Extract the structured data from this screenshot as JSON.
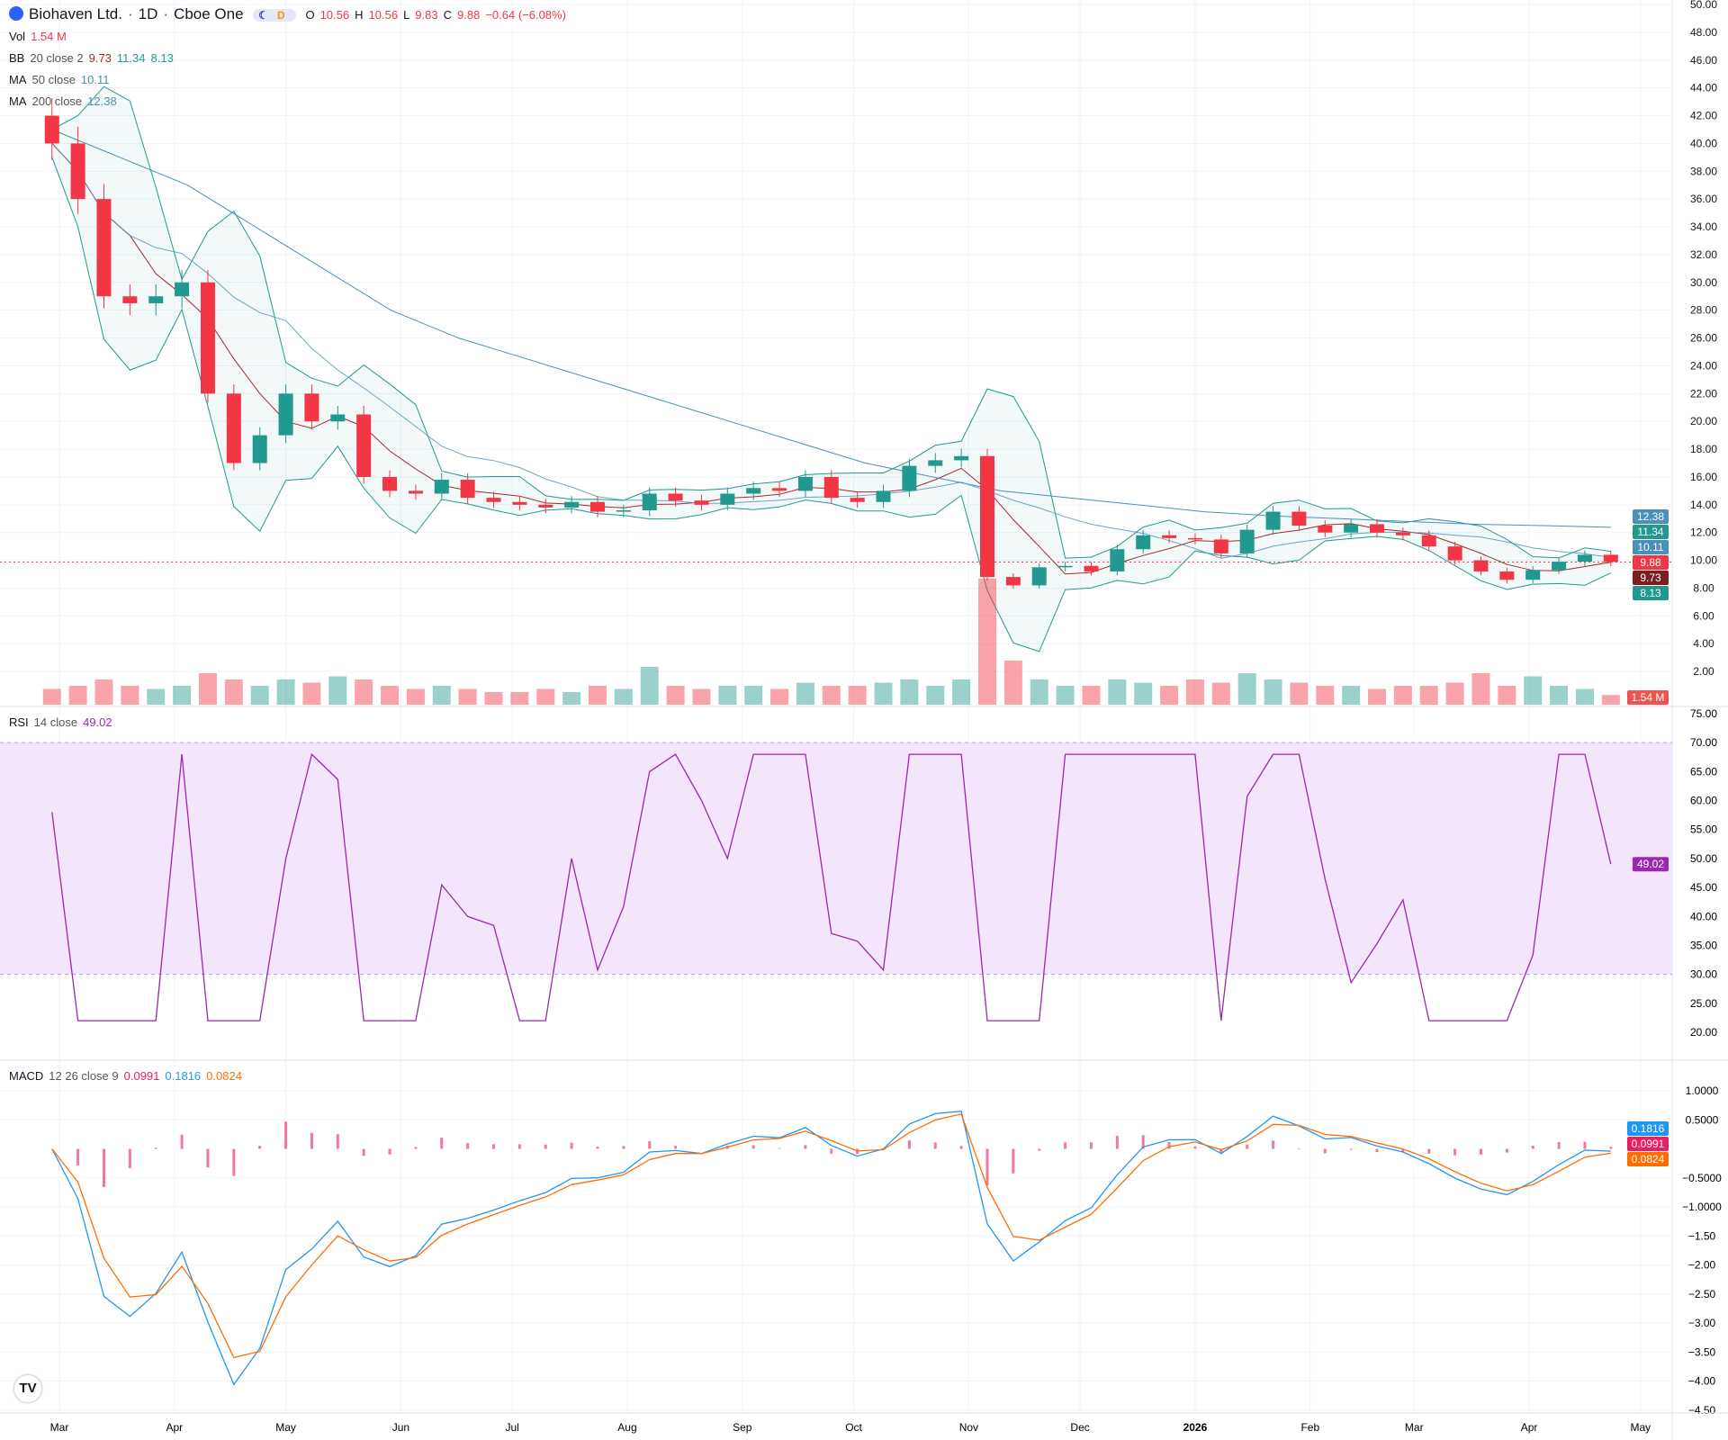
{
  "header": {
    "symbol": "Biohaven Ltd.",
    "interval": "1D",
    "exchange": "Cboe One",
    "open_label": "O",
    "open": "10.56",
    "high_label": "H",
    "high": "10.56",
    "low_label": "L",
    "low": "9.83",
    "close_label": "C",
    "close": "9.88",
    "change": "−0.64 (−6.08%)",
    "market_badges": [
      "moon-icon",
      "D"
    ]
  },
  "indicators": {
    "vol": {
      "label": "Vol",
      "value": "1.54 M"
    },
    "bb": {
      "label": "BB",
      "params": "20 close 2",
      "basis": "9.73",
      "upper": "11.34",
      "lower": "8.13"
    },
    "ma50": {
      "label": "MA",
      "params": "50 close",
      "value": "10.11"
    },
    "ma200": {
      "label": "MA",
      "params": "200 close",
      "value": "12.38"
    },
    "rsi": {
      "label": "RSI",
      "params": "14 close",
      "value": "49.02"
    },
    "macd": {
      "label": "MACD",
      "params": "12 26 close 9",
      "hist": "0.0991",
      "macd": "0.1816",
      "signal": "0.0824"
    }
  },
  "colors": {
    "up": "#22998f",
    "down": "#f23645",
    "bb": "#22998f",
    "ma50": "#a52a2a",
    "ma200": "#4a90b8",
    "rsi": "#9c27b0",
    "rsi_band": "#f3e5fc",
    "macd": "#2196f3",
    "signal": "#ff6d00",
    "hist": "#e91e63"
  },
  "chart_data": {
    "type": "candlestick",
    "x_ticks": [
      "Mar",
      "Apr",
      "May",
      "Jun",
      "Jul",
      "Aug",
      "Sep",
      "Oct",
      "Nov",
      "Dec",
      "2026",
      "Feb",
      "Mar",
      "Apr",
      "May"
    ],
    "x_tick_dates": [
      "2025-03-01",
      "2025-04-01",
      "2025-05-01",
      "2025-06-01",
      "2025-07-01",
      "2025-08-01",
      "2025-09-01",
      "2025-10-01",
      "2025-11-01",
      "2025-12-01",
      "2026-01-01",
      "2026-02-01",
      "2026-03-01",
      "2026-04-01",
      "2026-05-01"
    ],
    "price_axis": {
      "range": [
        2,
        50
      ],
      "step": 2
    },
    "rsi_axis": {
      "ticks": [
        75,
        70,
        65,
        60,
        55,
        50,
        45,
        40,
        35,
        30,
        25,
        20
      ],
      "band": [
        30,
        70
      ]
    },
    "macd_axis": {
      "ticks": [
        "1.0000",
        "0.5000",
        "−0.5000",
        "−1.0000",
        "−1.50",
        "−2.00",
        "−2.50",
        "−3.00",
        "−3.50",
        "−4.00",
        "−4.50"
      ],
      "range": [
        -4.5,
        1
      ]
    },
    "start_date": "2025-02-24",
    "weekly_close": [
      40,
      36,
      29,
      28.5,
      29,
      30,
      22,
      17,
      19,
      22,
      20,
      20.5,
      16,
      15,
      14.8,
      15.8,
      14.5,
      14.2,
      14,
      13.8,
      14.2,
      13.5,
      13.6,
      14.8,
      14.3,
      14,
      14.8,
      15.2,
      15,
      16,
      14.5,
      14.2,
      15,
      16.8,
      17.2,
      17.5,
      8.8,
      8.2,
      9.5,
      9.6,
      9.2,
      10.8,
      11.8,
      11.6,
      11.5,
      10.5,
      12.2,
      13.5,
      12.5,
      12,
      12.6,
      12,
      11.8,
      11,
      10,
      9.2,
      8.6,
      9.3,
      9.9,
      10.4,
      9.88
    ],
    "weekly_volume_m": [
      2.5,
      3,
      4,
      3,
      2.5,
      3,
      5,
      4,
      3,
      4,
      3.5,
      4.5,
      4,
      3,
      2.5,
      3,
      2.5,
      2,
      2,
      2.5,
      2,
      3,
      2.5,
      6,
      3,
      2.5,
      3,
      3,
      2.5,
      3.5,
      3,
      3,
      3.5,
      4,
      3,
      4,
      20,
      7,
      4,
      3,
      3,
      4,
      3.5,
      3,
      4,
      3.5,
      5,
      4,
      3.5,
      3,
      3,
      2.5,
      3,
      3,
      3.5,
      5,
      3,
      4.5,
      3,
      2.5,
      1.54
    ],
    "ma200_knots": [
      41,
      39,
      37,
      34,
      31,
      28,
      26,
      24.5,
      23,
      21.5,
      20,
      18.5,
      17,
      16,
      15,
      14.5,
      14,
      13.5,
      13.2,
      13,
      12.8,
      12.6,
      12.5,
      12.38
    ],
    "price_labels": [
      {
        "v": "12.38",
        "c": "#4a90b8"
      },
      {
        "v": "11.34",
        "c": "#22998f"
      },
      {
        "v": "10.11",
        "c": "#4a90b8"
      },
      {
        "v": "9.88",
        "c": "#f23645"
      },
      {
        "v": "9.73",
        "c": "#7a1f1f"
      },
      {
        "v": "8.13",
        "c": "#22998f"
      }
    ],
    "rsi_label": "49.02",
    "macd_labels": [
      {
        "v": "0.1816",
        "c": "#2196f3"
      },
      {
        "v": "0.0991",
        "c": "#e91e63"
      },
      {
        "v": "0.0824",
        "c": "#ff6d00"
      }
    ],
    "vol_label": "1.54 M"
  }
}
